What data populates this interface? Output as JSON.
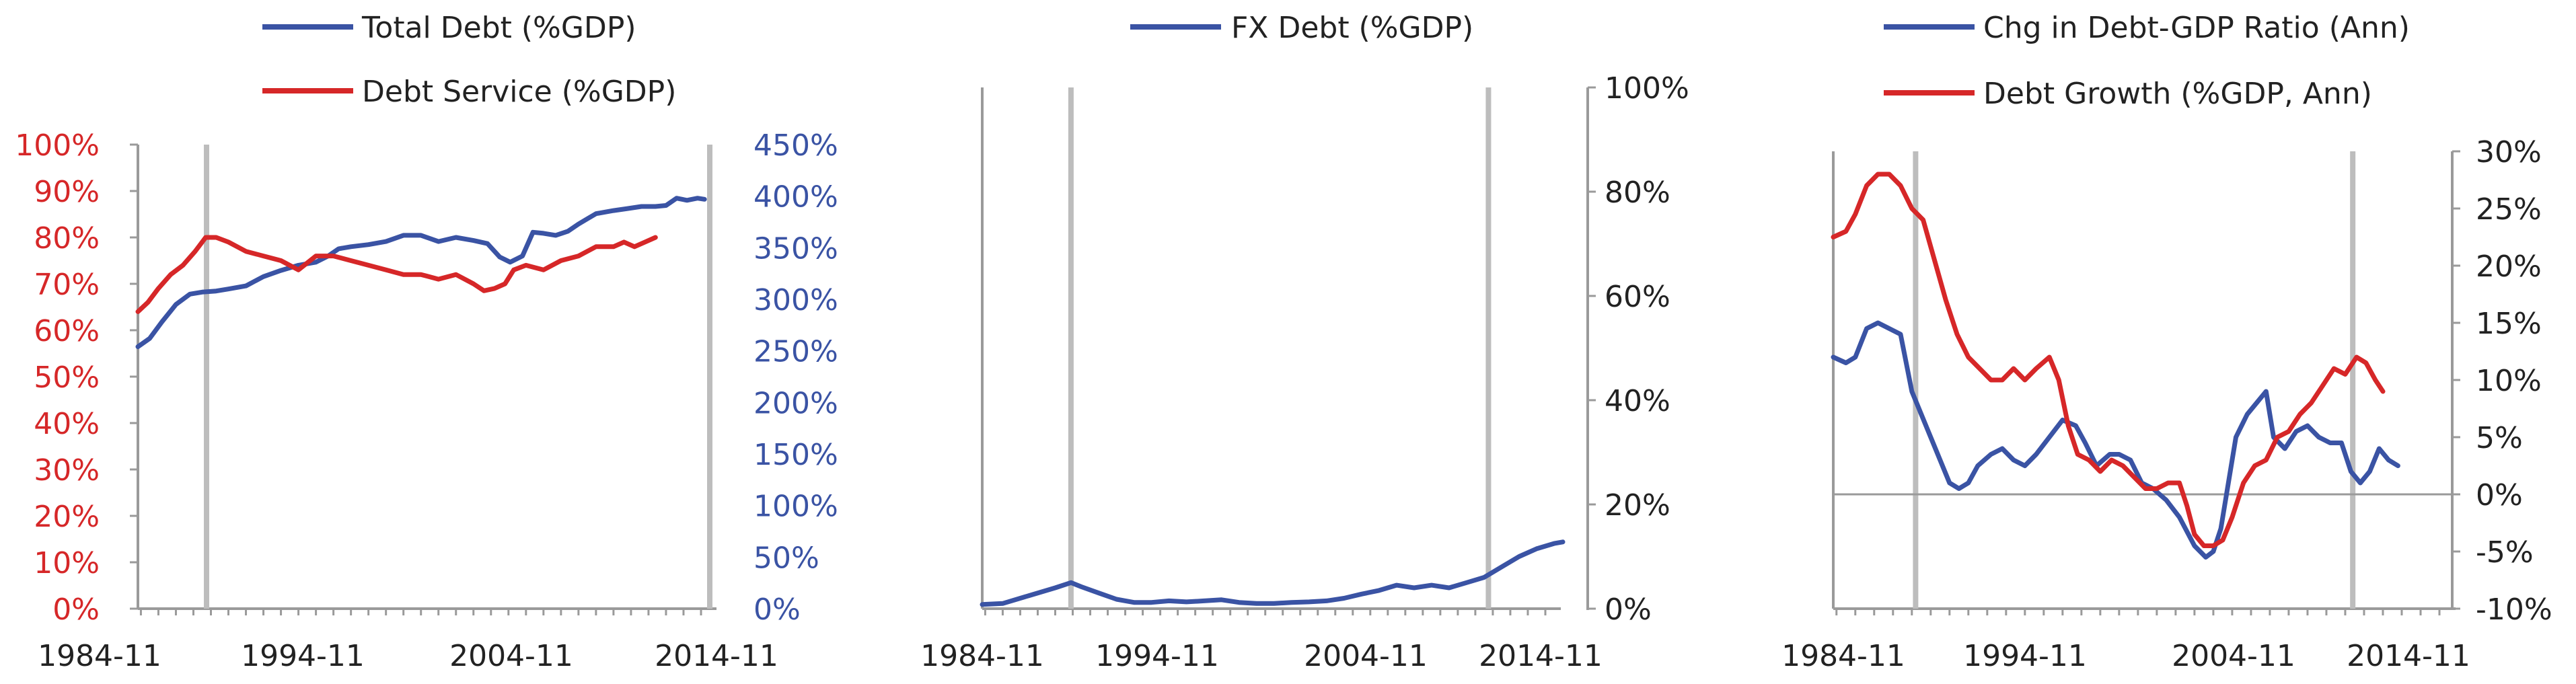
{
  "chart_data": [
    {
      "type": "line",
      "title": "",
      "x_ticks": [
        "1984-11",
        "1994-11",
        "2004-11",
        "2014-11"
      ],
      "x_range": [
        1984.83,
        2017.5
      ],
      "vlines": [
        1988.75,
        2017.5
      ],
      "left_axis": {
        "color": "#d62728",
        "min": 0,
        "max": 100,
        "ticks": [
          "0%",
          "10%",
          "20%",
          "30%",
          "40%",
          "50%",
          "60%",
          "70%",
          "80%",
          "90%",
          "100%"
        ]
      },
      "right_axis": {
        "color": "#3a53a4",
        "min": 0,
        "max": 450,
        "ticks": [
          "0%",
          "50%",
          "100%",
          "150%",
          "200%",
          "250%",
          "300%",
          "350%",
          "400%",
          "450%"
        ]
      },
      "legend": [
        "Total Debt (%GDP)",
        "Debt Service (%GDP)"
      ],
      "series": [
        {
          "name": "Total Debt (%GDP)",
          "axis": "right",
          "color": "#3a53a4",
          "points": [
            [
              1984.83,
              254
            ],
            [
              1985.5,
              262
            ],
            [
              1986.2,
              278
            ],
            [
              1987,
              295
            ],
            [
              1987.8,
              305
            ],
            [
              1988.5,
              307
            ],
            [
              1989.3,
              308
            ],
            [
              1990,
              310
            ],
            [
              1991,
              313
            ],
            [
              1992,
              322
            ],
            [
              1993,
              328
            ],
            [
              1994,
              333
            ],
            [
              1995,
              336
            ],
            [
              1995.7,
              342
            ],
            [
              1996.3,
              349
            ],
            [
              1997,
              351
            ],
            [
              1998,
              353
            ],
            [
              1999,
              356
            ],
            [
              2000,
              362
            ],
            [
              2001,
              362
            ],
            [
              2002,
              356
            ],
            [
              2003,
              360
            ],
            [
              2004,
              357
            ],
            [
              2004.8,
              354
            ],
            [
              2005.5,
              341
            ],
            [
              2006.1,
              336
            ],
            [
              2006.8,
              342
            ],
            [
              2007.4,
              365
            ],
            [
              2008,
              364
            ],
            [
              2008.7,
              362
            ],
            [
              2009.4,
              366
            ],
            [
              2010,
              373
            ],
            [
              2010.5,
              378
            ],
            [
              2011,
              383
            ],
            [
              2012,
              386
            ],
            [
              2012.8,
              388
            ],
            [
              2013.6,
              390
            ],
            [
              2014.4,
              390
            ],
            [
              2015,
              391
            ],
            [
              2015.6,
              398
            ],
            [
              2016.2,
              396
            ],
            [
              2016.8,
              398
            ],
            [
              2017.2,
              397
            ]
          ]
        },
        {
          "name": "Debt Service (%GDP)",
          "axis": "left",
          "color": "#d62728",
          "points": [
            [
              1984.83,
              64
            ],
            [
              1985.4,
              66
            ],
            [
              1986,
              69
            ],
            [
              1986.7,
              72
            ],
            [
              1987.4,
              74
            ],
            [
              1988.1,
              77
            ],
            [
              1988.7,
              80
            ],
            [
              1989.3,
              80
            ],
            [
              1990,
              79
            ],
            [
              1991,
              77
            ],
            [
              1992,
              76
            ],
            [
              1993,
              75
            ],
            [
              1994,
              73
            ],
            [
              1995,
              76
            ],
            [
              1996,
              76
            ],
            [
              1997,
              75
            ],
            [
              1998,
              74
            ],
            [
              1999,
              73
            ],
            [
              2000,
              72
            ],
            [
              2001,
              72
            ],
            [
              2002,
              71
            ],
            [
              2003,
              72
            ],
            [
              2004,
              70
            ],
            [
              2004.6,
              68.5
            ],
            [
              2005.2,
              69
            ],
            [
              2005.8,
              70
            ],
            [
              2006.3,
              73
            ],
            [
              2007,
              74
            ],
            [
              2008,
              73
            ],
            [
              2009,
              75
            ],
            [
              2010,
              76
            ],
            [
              2011,
              78
            ],
            [
              2012,
              78
            ],
            [
              2012.6,
              79
            ],
            [
              2013.2,
              78
            ],
            [
              2013.8,
              79
            ],
            [
              2014.4,
              80
            ]
          ]
        }
      ]
    },
    {
      "type": "line",
      "title": "",
      "x_ticks": [
        "1984-11",
        "1994-11",
        "2004-11",
        "2014-11"
      ],
      "x_range": [
        1984.83,
        2017.5
      ],
      "vlines": [
        1989.9,
        2013.75
      ],
      "right_axis": {
        "color": "#222222",
        "min": 0,
        "max": 100,
        "ticks": [
          "0%",
          "20%",
          "40%",
          "60%",
          "80%",
          "100%"
        ]
      },
      "legend": [
        "FX Debt (%GDP)"
      ],
      "series": [
        {
          "name": "FX Debt (%GDP)",
          "axis": "right",
          "color": "#3a53a4",
          "points": [
            [
              1984.83,
              0.8
            ],
            [
              1986,
              1
            ],
            [
              1987.5,
              2.5
            ],
            [
              1989,
              4
            ],
            [
              1989.9,
              5
            ],
            [
              1990.5,
              4.2
            ],
            [
              1991.5,
              3
            ],
            [
              1992.5,
              1.8
            ],
            [
              1993.5,
              1.2
            ],
            [
              1994.5,
              1.2
            ],
            [
              1995.5,
              1.5
            ],
            [
              1996.5,
              1.3
            ],
            [
              1997.5,
              1.5
            ],
            [
              1998.5,
              1.7
            ],
            [
              1999.5,
              1.2
            ],
            [
              2000.5,
              1
            ],
            [
              2001.5,
              1
            ],
            [
              2002.5,
              1.2
            ],
            [
              2003.5,
              1.3
            ],
            [
              2004.5,
              1.5
            ],
            [
              2005.5,
              2
            ],
            [
              2006.5,
              2.8
            ],
            [
              2007.5,
              3.5
            ],
            [
              2008.5,
              4.5
            ],
            [
              2009.5,
              4
            ],
            [
              2010.5,
              4.5
            ],
            [
              2011.5,
              4
            ],
            [
              2012.5,
              5
            ],
            [
              2013.5,
              6
            ],
            [
              2014.5,
              8
            ],
            [
              2015.5,
              10
            ],
            [
              2016.5,
              11.5
            ],
            [
              2017.5,
              12.5
            ],
            [
              2018,
              12.8
            ]
          ]
        }
      ]
    },
    {
      "type": "line",
      "title": "",
      "x_ticks": [
        "1984-11",
        "1994-11",
        "2004-11",
        "2014-11"
      ],
      "x_range": [
        1984.83,
        2017.5
      ],
      "vlines": [
        1989.2,
        2012.4
      ],
      "zero_line": true,
      "right_axis": {
        "color": "#222222",
        "min": -10,
        "max": 30,
        "ticks": [
          "-10%",
          "-5%",
          "0%",
          "5%",
          "10%",
          "15%",
          "20%",
          "25%",
          "30%"
        ]
      },
      "legend": [
        "Chg in Debt-GDP Ratio (Ann)",
        "Debt Growth (%GDP, Ann)"
      ],
      "series": [
        {
          "name": "Chg in Debt-GDP Ratio (Ann)",
          "axis": "right",
          "color": "#3a53a4",
          "points": [
            [
              1984.83,
              12
            ],
            [
              1985.5,
              11.5
            ],
            [
              1986,
              12
            ],
            [
              1986.6,
              14.5
            ],
            [
              1987.2,
              15
            ],
            [
              1987.8,
              14.5
            ],
            [
              1988.4,
              14
            ],
            [
              1989,
              9
            ],
            [
              1989.5,
              7
            ],
            [
              1990,
              5
            ],
            [
              1990.5,
              3
            ],
            [
              1991,
              1
            ],
            [
              1991.5,
              0.5
            ],
            [
              1992,
              1
            ],
            [
              1992.5,
              2.5
            ],
            [
              1993.2,
              3.5
            ],
            [
              1993.8,
              4
            ],
            [
              1994.4,
              3
            ],
            [
              1995,
              2.5
            ],
            [
              1995.6,
              3.5
            ],
            [
              1996.3,
              5
            ],
            [
              1997,
              6.5
            ],
            [
              1997.7,
              6
            ],
            [
              1998.2,
              4.5
            ],
            [
              1998.8,
              2.5
            ],
            [
              1999.5,
              3.5
            ],
            [
              2000,
              3.5
            ],
            [
              2000.6,
              3
            ],
            [
              2001.2,
              1
            ],
            [
              2001.8,
              0.5
            ],
            [
              2002.5,
              -0.5
            ],
            [
              2003.2,
              -2
            ],
            [
              2004,
              -4.5
            ],
            [
              2004.6,
              -5.5
            ],
            [
              2005,
              -5
            ],
            [
              2005.4,
              -3
            ],
            [
              2005.8,
              1
            ],
            [
              2006.2,
              5
            ],
            [
              2006.8,
              7
            ],
            [
              2007.3,
              8
            ],
            [
              2007.8,
              9
            ],
            [
              2008.2,
              5
            ],
            [
              2008.8,
              4
            ],
            [
              2009.4,
              5.5
            ],
            [
              2010,
              6
            ],
            [
              2010.6,
              5
            ],
            [
              2011.2,
              4.5
            ],
            [
              2011.8,
              4.5
            ],
            [
              2012.3,
              2
            ],
            [
              2012.8,
              1
            ],
            [
              2013.3,
              2
            ],
            [
              2013.8,
              4
            ],
            [
              2014.3,
              3
            ],
            [
              2014.8,
              2.5
            ]
          ]
        },
        {
          "name": "Debt Growth (%GDP, Ann)",
          "axis": "right",
          "color": "#d62728",
          "points": [
            [
              1984.83,
              22.5
            ],
            [
              1985.5,
              23
            ],
            [
              1986,
              24.5
            ],
            [
              1986.6,
              27
            ],
            [
              1987.2,
              28
            ],
            [
              1987.8,
              28
            ],
            [
              1988.4,
              27
            ],
            [
              1989,
              25
            ],
            [
              1989.6,
              24
            ],
            [
              1990.2,
              20.5
            ],
            [
              1990.8,
              17
            ],
            [
              1991.4,
              14
            ],
            [
              1992,
              12
            ],
            [
              1992.6,
              11
            ],
            [
              1993.2,
              10
            ],
            [
              1993.8,
              10
            ],
            [
              1994.4,
              11
            ],
            [
              1995,
              10
            ],
            [
              1995.6,
              11
            ],
            [
              1996.3,
              12
            ],
            [
              1996.8,
              10
            ],
            [
              1997.3,
              6
            ],
            [
              1997.8,
              3.5
            ],
            [
              1998.4,
              3
            ],
            [
              1999,
              2
            ],
            [
              1999.6,
              3
            ],
            [
              2000.2,
              2.5
            ],
            [
              2000.8,
              1.5
            ],
            [
              2001.4,
              0.5
            ],
            [
              2002,
              0.5
            ],
            [
              2002.6,
              1
            ],
            [
              2003.2,
              1
            ],
            [
              2003.6,
              -1
            ],
            [
              2004,
              -3.5
            ],
            [
              2004.5,
              -4.5
            ],
            [
              2005,
              -4.5
            ],
            [
              2005.5,
              -4
            ],
            [
              2006,
              -2
            ],
            [
              2006.6,
              1
            ],
            [
              2007.2,
              2.5
            ],
            [
              2007.8,
              3
            ],
            [
              2008.4,
              5
            ],
            [
              2009,
              5.5
            ],
            [
              2009.6,
              7
            ],
            [
              2010.2,
              8
            ],
            [
              2010.8,
              9.5
            ],
            [
              2011.4,
              11
            ],
            [
              2012,
              10.5
            ],
            [
              2012.6,
              12
            ],
            [
              2013.1,
              11.5
            ],
            [
              2013.6,
              10
            ],
            [
              2014,
              9
            ]
          ]
        }
      ]
    }
  ]
}
